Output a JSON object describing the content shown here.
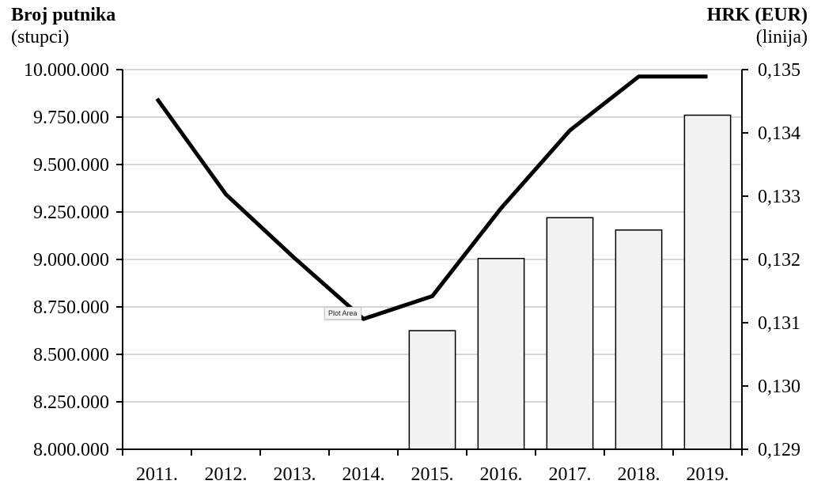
{
  "chart_data": {
    "type": "bar",
    "categories": [
      "2011.",
      "2012.",
      "2013.",
      "2014.",
      "2015.",
      "2016.",
      "2017.",
      "2018.",
      "2019."
    ],
    "left_axis": {
      "title": "Broj putnika",
      "subtitle": "(stupci)",
      "ylim": [
        8000000,
        10000000
      ],
      "ticks": [
        8000000,
        8250000,
        8500000,
        8750000,
        9000000,
        9250000,
        9500000,
        9750000,
        10000000
      ],
      "tick_labels": [
        "8.000.000",
        "8.250.000",
        "8.500.000",
        "8.750.000",
        "9.000.000",
        "9.250.000",
        "9.500.000",
        "9.750.000",
        "10.000.000"
      ]
    },
    "right_axis": {
      "title": "HRK (EUR)",
      "subtitle": "(linija)",
      "ylim": [
        0.129,
        0.135
      ],
      "ticks": [
        0.129,
        0.13,
        0.131,
        0.132,
        0.133,
        0.134,
        0.135
      ],
      "tick_labels": [
        "0,129",
        "0,130",
        "0,131",
        "0,132",
        "0,133",
        "0,134",
        "0,135"
      ]
    },
    "series": [
      {
        "type": "bar",
        "axis": "left",
        "color": "#f2f2f2",
        "values": [
          null,
          null,
          null,
          null,
          8625000,
          9005000,
          9220000,
          9155000,
          9760000
        ]
      },
      {
        "type": "line",
        "axis": "right",
        "color": "#000000",
        "values": [
          0.13454,
          0.13303,
          0.13202,
          0.13106,
          0.13142,
          0.13281,
          0.13404,
          0.13489,
          0.13489
        ]
      }
    ],
    "grid": true,
    "legend": "none"
  },
  "tooltip": {
    "text": "Plot Area"
  }
}
